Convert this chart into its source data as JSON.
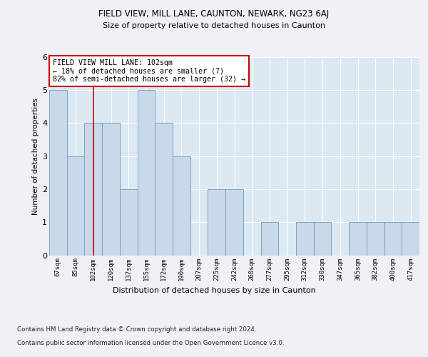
{
  "title1": "FIELD VIEW, MILL LANE, CAUNTON, NEWARK, NG23 6AJ",
  "title2": "Size of property relative to detached houses in Caunton",
  "xlabel": "Distribution of detached houses by size in Caunton",
  "ylabel": "Number of detached properties",
  "bins": [
    "67sqm",
    "85sqm",
    "102sqm",
    "120sqm",
    "137sqm",
    "155sqm",
    "172sqm",
    "190sqm",
    "207sqm",
    "225sqm",
    "242sqm",
    "260sqm",
    "277sqm",
    "295sqm",
    "312sqm",
    "330sqm",
    "347sqm",
    "365sqm",
    "382sqm",
    "400sqm",
    "417sqm"
  ],
  "values": [
    5,
    3,
    4,
    4,
    2,
    5,
    4,
    3,
    0,
    2,
    2,
    0,
    1,
    0,
    1,
    1,
    0,
    1,
    1,
    1,
    1
  ],
  "bar_color": "#c9d9ea",
  "bar_edge_color": "#6a9bbf",
  "highlight_index": 2,
  "highlight_line_color": "#cc0000",
  "annotation_text": "FIELD VIEW MILL LANE: 102sqm\n← 18% of detached houses are smaller (7)\n82% of semi-detached houses are larger (32) →",
  "annotation_box_edge": "#cc0000",
  "ylim": [
    0,
    6
  ],
  "yticks": [
    0,
    1,
    2,
    3,
    4,
    5,
    6
  ],
  "footer1": "Contains HM Land Registry data © Crown copyright and database right 2024.",
  "footer2": "Contains public sector information licensed under the Open Government Licence v3.0.",
  "bg_color": "#eef2f7",
  "plot_bg_color": "#dce8f2"
}
